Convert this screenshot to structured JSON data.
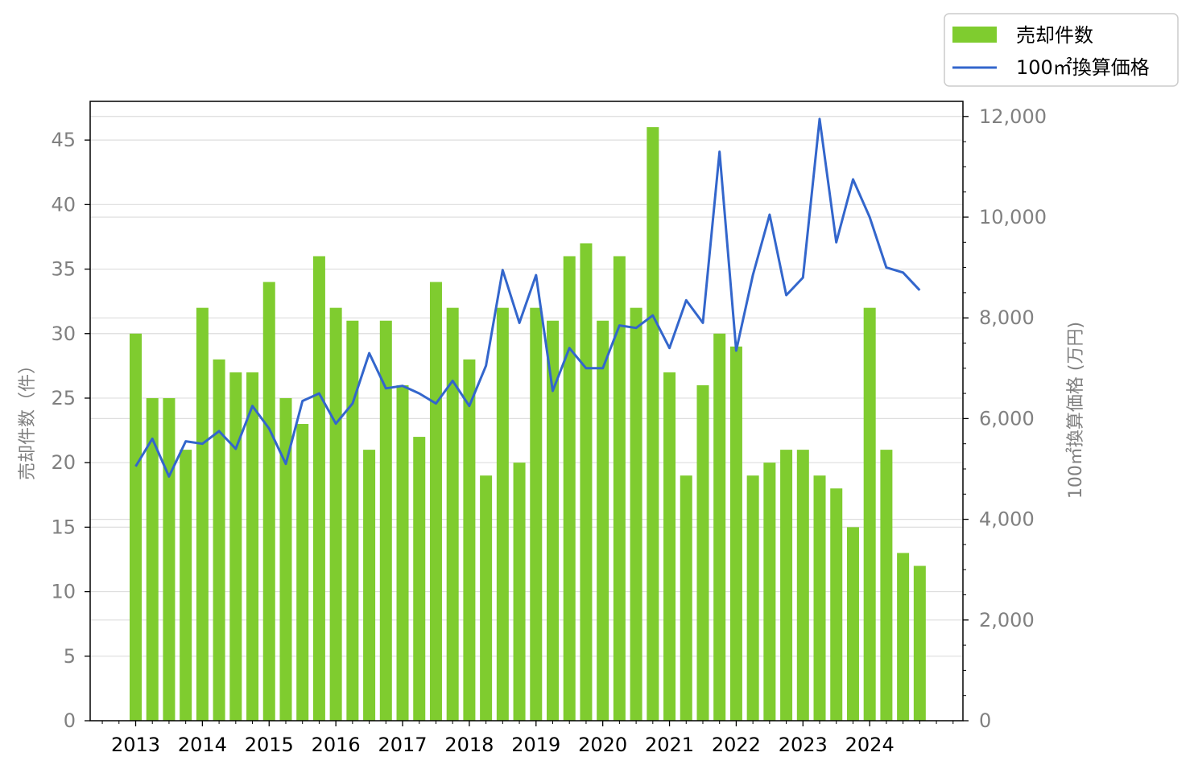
{
  "chart_data": {
    "type": "bar",
    "bar_color": "#7fcc2f",
    "line_color": "#3366cc",
    "grid": true,
    "legend_placement": "top-right",
    "x_ticks": [
      "2013",
      "2014",
      "2015",
      "2016",
      "2017",
      "2018",
      "2019",
      "2020",
      "2021",
      "2022",
      "2023",
      "2024"
    ],
    "y_left": {
      "label": "売却件数（件）",
      "lim": [
        0,
        48
      ],
      "ticks": [
        "0",
        "5",
        "10",
        "15",
        "20",
        "25",
        "30",
        "35",
        "40",
        "45"
      ]
    },
    "y_right": {
      "label": "100㎡換算価格 (万円)",
      "lim": [
        0,
        12300
      ],
      "ticks": [
        "0",
        "2,000",
        "4,000",
        "6,000",
        "8,000",
        "10,000",
        "12,000"
      ]
    },
    "series": [
      {
        "name": "売却件数",
        "kind": "bar",
        "axis": "left",
        "values": [
          30,
          25,
          25,
          21,
          32,
          28,
          27,
          27,
          34,
          25,
          23,
          36,
          32,
          31,
          21,
          31,
          26,
          22,
          34,
          32,
          28,
          19,
          32,
          20,
          32,
          31,
          36,
          37,
          31,
          36,
          32,
          46,
          27,
          19,
          26,
          30,
          29,
          19,
          20,
          21,
          21,
          19,
          18,
          15,
          32,
          21,
          13,
          12
        ]
      },
      {
        "name": "100㎡換算価格",
        "kind": "line",
        "axis": "right",
        "values": [
          5050,
          5600,
          4850,
          5550,
          5500,
          5750,
          5400,
          6250,
          5800,
          5100,
          6350,
          6500,
          5900,
          6300,
          7300,
          6600,
          6650,
          6500,
          6300,
          6750,
          6250,
          7050,
          8950,
          7900,
          8850,
          6550,
          7400,
          7000,
          7000,
          7850,
          7800,
          8050,
          7400,
          8350,
          7900,
          11300,
          7350,
          8850,
          10050,
          8450,
          8800,
          11950,
          9500,
          10750,
          10000,
          9000,
          8900,
          8550
        ]
      }
    ]
  }
}
